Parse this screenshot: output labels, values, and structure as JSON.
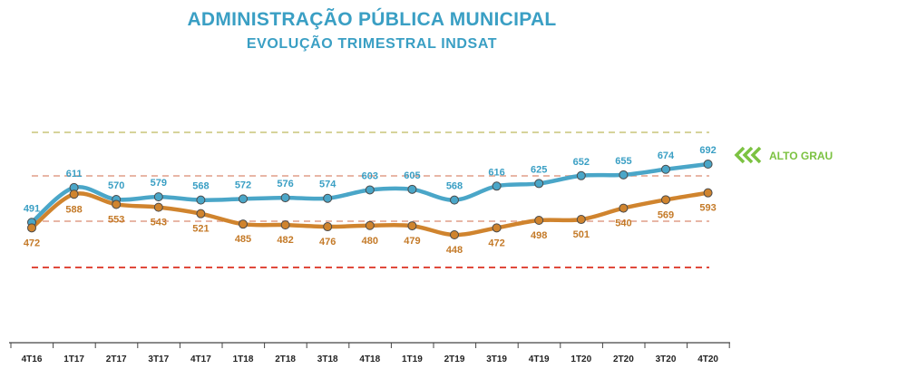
{
  "title": "ADMINISTRAÇÃO PÚBLICA MUNICIPAL",
  "subtitle": "EVOLUÇÃO TRIMESTRAL INDSAT",
  "colors": {
    "title": "#3a9fc4",
    "series_top": "#4aa6c8",
    "series_bottom": "#d0842e",
    "line_top_ref": "#d6d39a",
    "line_mid_ref": "#e8b6a6",
    "line_low_ref": "#e04a3c",
    "annotation": "#7cc242"
  },
  "annotation": {
    "label": "ALTO GRAU",
    "icon": "triple-chevron-left-icon"
  },
  "chart_data": {
    "type": "line",
    "categories": [
      "4T16",
      "1T17",
      "2T17",
      "3T17",
      "4T17",
      "1T18",
      "2T18",
      "3T18",
      "4T18",
      "1T19",
      "2T19",
      "3T19",
      "4T19",
      "1T20",
      "2T20",
      "3T20",
      "4T20"
    ],
    "series": [
      {
        "values": [
          491,
          611,
          570,
          579,
          568,
          572,
          576,
          574,
          603,
          605,
          568,
          616,
          625,
          652,
          655,
          674,
          692
        ]
      },
      {
        "values": [
          472,
          588,
          553,
          543,
          521,
          485,
          482,
          476,
          480,
          479,
          448,
          472,
          498,
          501,
          540,
          569,
          593
        ]
      }
    ],
    "reference_lines": [
      {
        "style": "dashed",
        "color": "#d6d39a"
      },
      {
        "style": "dashed",
        "color": "#e8b6a6"
      },
      {
        "style": "dashed",
        "color": "#e8b6a6"
      },
      {
        "style": "dashed",
        "color": "#e04a3c"
      }
    ],
    "legend": "none",
    "grid": false
  }
}
